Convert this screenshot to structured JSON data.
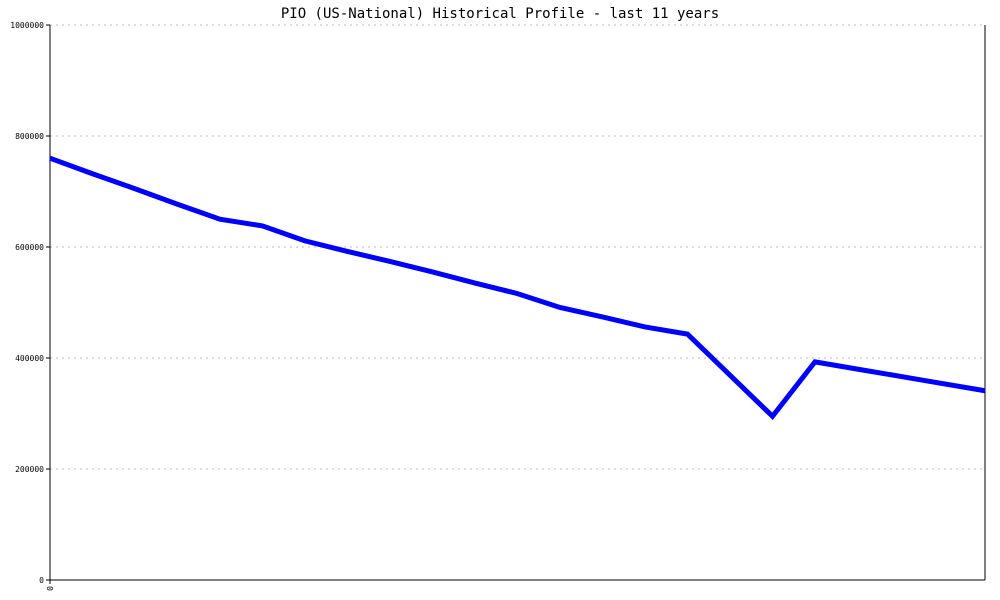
{
  "chart_data": {
    "type": "line",
    "title": "PIO (US-National) Historical Profile - last 11 years",
    "xlabel": "",
    "ylabel": "",
    "x_tick_labels": [
      "0"
    ],
    "y_tick_labels": [
      "0",
      "200000",
      "400000",
      "600000",
      "800000",
      "1000000"
    ],
    "ylim": [
      0,
      1000000
    ],
    "grid": "horizontal dotted",
    "line_color": "#0000ff",
    "series": [
      {
        "values": [
          760000,
          732000,
          705000,
          677000,
          650000,
          638000,
          611000,
          592000,
          574000,
          555000,
          535000,
          516000,
          491000,
          474000,
          456000,
          443000,
          369000,
          295000,
          393000,
          380000,
          367000,
          354000,
          341000
        ]
      }
    ]
  }
}
